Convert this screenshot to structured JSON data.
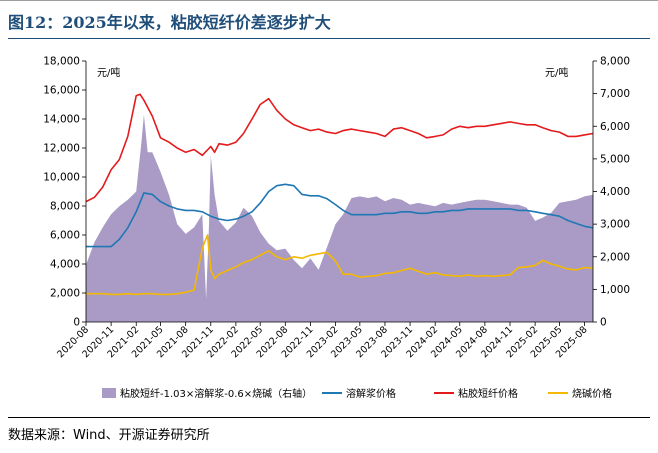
{
  "header": {
    "title": "图12：2025年以来，粘胶短纤价差逐步扩大"
  },
  "footer": {
    "source": "数据来源：Wind、开源证券研究所"
  },
  "chart_data": {
    "type": "line",
    "left_unit": "元/吨",
    "right_unit": "元/吨",
    "left_axis": {
      "min": 0,
      "max": 18000,
      "ticks": [
        "0",
        "2,000",
        "4,000",
        "6,000",
        "8,000",
        "10,000",
        "12,000",
        "14,000",
        "16,000",
        "18,000"
      ]
    },
    "right_axis": {
      "min": 0,
      "max": 8000,
      "ticks": [
        "0",
        "1,000",
        "2,000",
        "3,000",
        "4,000",
        "5,000",
        "6,000",
        "7,000",
        "8,000"
      ]
    },
    "x_range": [
      "2020-08",
      "2025-09"
    ],
    "x_tick_labels": [
      "2020-08",
      "2020-11",
      "2021-02",
      "2021-05",
      "2021-08",
      "2021-11",
      "2022-02",
      "2022-05",
      "2022-08",
      "2022-11",
      "2023-02",
      "2023-05",
      "2023-08",
      "2023-11",
      "2024-02",
      "2024-05",
      "2024-08",
      "2024-11",
      "2025-02",
      "2025-05",
      "2025-08"
    ],
    "grid": false,
    "legend_position": "bottom",
    "series": [
      {
        "name": "粘胶短纤-1.03×溶解浆-0.6×烧碱（右轴）",
        "kind": "area",
        "axis": "right",
        "color": "#a99bc6",
        "x": [
          "2020-08",
          "2020-09",
          "2020-10",
          "2020-11",
          "2020-12",
          "2021-01",
          "2021-02",
          "2021-02-20",
          "2021-03",
          "2021-03-15",
          "2021-04",
          "2021-05",
          "2021-06",
          "2021-07",
          "2021-08",
          "2021-09",
          "2021-10",
          "2021-10-15",
          "2021-10-25",
          "2021-11",
          "2021-11-15",
          "2021-12",
          "2022-01",
          "2022-02",
          "2022-03",
          "2022-04",
          "2022-05",
          "2022-06",
          "2022-07",
          "2022-08",
          "2022-09",
          "2022-10",
          "2022-11",
          "2022-12",
          "2023-01",
          "2023-02",
          "2023-03",
          "2023-04",
          "2023-05",
          "2023-06",
          "2023-07",
          "2023-08",
          "2023-09",
          "2023-10",
          "2023-11",
          "2023-12",
          "2024-01",
          "2024-02",
          "2024-03",
          "2024-04",
          "2024-05",
          "2024-06",
          "2024-07",
          "2024-08",
          "2024-09",
          "2024-10",
          "2024-11",
          "2024-12",
          "2025-01",
          "2025-02",
          "2025-03",
          "2025-04",
          "2025-05",
          "2025-06",
          "2025-07",
          "2025-08",
          "2025-09"
        ],
        "values": [
          1750,
          2450,
          2900,
          3300,
          3550,
          3750,
          4000,
          5500,
          6350,
          5200,
          5200,
          4600,
          3900,
          3000,
          2700,
          2900,
          3300,
          700,
          2900,
          5100,
          3900,
          3100,
          2800,
          3050,
          3500,
          3250,
          2750,
          2400,
          2200,
          2250,
          1900,
          1650,
          1950,
          1600,
          2300,
          3000,
          3300,
          3800,
          3850,
          3800,
          3850,
          3700,
          3800,
          3750,
          3600,
          3650,
          3600,
          3550,
          3650,
          3600,
          3650,
          3700,
          3750,
          3750,
          3700,
          3650,
          3600,
          3600,
          3500,
          3100,
          3200,
          3350,
          3650,
          3700,
          3750,
          3850,
          3900
        ]
      },
      {
        "name": "溶解浆价格",
        "kind": "line",
        "axis": "left",
        "color": "#1f77b4",
        "x": [
          "2020-08",
          "2020-11",
          "2020-12",
          "2021-01",
          "2021-02",
          "2021-03",
          "2021-04",
          "2021-05",
          "2021-06",
          "2021-07",
          "2021-08",
          "2021-09",
          "2021-10",
          "2021-11",
          "2021-12",
          "2022-01",
          "2022-02",
          "2022-03",
          "2022-04",
          "2022-05",
          "2022-06",
          "2022-07",
          "2022-08",
          "2022-09",
          "2022-10",
          "2022-11",
          "2022-12",
          "2023-01",
          "2023-02",
          "2023-03",
          "2023-04",
          "2023-05",
          "2023-06",
          "2023-07",
          "2023-08",
          "2023-09",
          "2023-10",
          "2023-11",
          "2023-12",
          "2024-01",
          "2024-02",
          "2024-03",
          "2024-04",
          "2024-05",
          "2024-06",
          "2024-07",
          "2024-08",
          "2024-09",
          "2024-10",
          "2024-11",
          "2024-12",
          "2025-01",
          "2025-02",
          "2025-03",
          "2025-04",
          "2025-05",
          "2025-06",
          "2025-07",
          "2025-08",
          "2025-09"
        ],
        "values": [
          5200,
          5200,
          5700,
          6500,
          7600,
          8900,
          8800,
          8300,
          8000,
          7800,
          7700,
          7700,
          7600,
          7300,
          7100,
          7000,
          7100,
          7300,
          7600,
          8200,
          9000,
          9400,
          9500,
          9400,
          8800,
          8700,
          8700,
          8500,
          8100,
          7700,
          7400,
          7400,
          7400,
          7400,
          7500,
          7500,
          7600,
          7600,
          7500,
          7500,
          7600,
          7600,
          7700,
          7700,
          7800,
          7800,
          7800,
          7800,
          7800,
          7800,
          7700,
          7700,
          7600,
          7500,
          7400,
          7300,
          7000,
          6800,
          6600,
          6500
        ]
      },
      {
        "name": "粘胶短纤价格",
        "kind": "line",
        "axis": "left",
        "color": "#e41a1c",
        "x": [
          "2020-08",
          "2020-09",
          "2020-10",
          "2020-11",
          "2020-12",
          "2021-01",
          "2021-02",
          "2021-02-15",
          "2021-03",
          "2021-04",
          "2021-05",
          "2021-06",
          "2021-07",
          "2021-08",
          "2021-09",
          "2021-10",
          "2021-11",
          "2021-11-15",
          "2021-12",
          "2022-01",
          "2022-02",
          "2022-03",
          "2022-04",
          "2022-05",
          "2022-06",
          "2022-07",
          "2022-08",
          "2022-09",
          "2022-10",
          "2022-11",
          "2022-12",
          "2023-01",
          "2023-02",
          "2023-03",
          "2023-04",
          "2023-05",
          "2023-06",
          "2023-07",
          "2023-08",
          "2023-09",
          "2023-10",
          "2023-11",
          "2023-12",
          "2024-01",
          "2024-02",
          "2024-03",
          "2024-04",
          "2024-05",
          "2024-06",
          "2024-07",
          "2024-08",
          "2024-09",
          "2024-10",
          "2024-11",
          "2024-12",
          "2025-01",
          "2025-02",
          "2025-03",
          "2025-04",
          "2025-05",
          "2025-06",
          "2025-07",
          "2025-08",
          "2025-09"
        ],
        "values": [
          8300,
          8600,
          9300,
          10500,
          11200,
          12800,
          15600,
          15700,
          15300,
          14200,
          12700,
          12400,
          12000,
          11700,
          11900,
          11500,
          12100,
          11700,
          12300,
          12200,
          12400,
          13000,
          14000,
          15000,
          15400,
          14600,
          14000,
          13600,
          13400,
          13200,
          13300,
          13100,
          13000,
          13200,
          13300,
          13200,
          13100,
          13000,
          12800,
          13300,
          13400,
          13200,
          13000,
          12700,
          12800,
          12900,
          13300,
          13500,
          13400,
          13500,
          13500,
          13600,
          13700,
          13800,
          13700,
          13600,
          13600,
          13400,
          13200,
          13100,
          12800,
          12800,
          12900,
          13000
        ]
      },
      {
        "name": "烧碱价格",
        "kind": "line",
        "axis": "left",
        "color": "#f5b800",
        "x": [
          "2020-08",
          "2020-09",
          "2020-10",
          "2020-11",
          "2020-12",
          "2021-01",
          "2021-02",
          "2021-03",
          "2021-04",
          "2021-05",
          "2021-06",
          "2021-07",
          "2021-08",
          "2021-09",
          "2021-10",
          "2021-10-20",
          "2021-11",
          "2021-11-15",
          "2021-12",
          "2022-01",
          "2022-02",
          "2022-03",
          "2022-04",
          "2022-05",
          "2022-06",
          "2022-07",
          "2022-08",
          "2022-09",
          "2022-10",
          "2022-11",
          "2022-12",
          "2023-01",
          "2023-02",
          "2023-03",
          "2023-04",
          "2023-05",
          "2023-06",
          "2023-07",
          "2023-08",
          "2023-09",
          "2023-10",
          "2023-11",
          "2023-12",
          "2024-01",
          "2024-02",
          "2024-03",
          "2024-04",
          "2024-05",
          "2024-06",
          "2024-07",
          "2024-08",
          "2024-09",
          "2024-10",
          "2024-11",
          "2024-12",
          "2025-01",
          "2025-02",
          "2025-03",
          "2025-04",
          "2025-05",
          "2025-06",
          "2025-07",
          "2025-08",
          "2025-09"
        ],
        "values": [
          1950,
          1950,
          1950,
          1900,
          1900,
          1950,
          1900,
          1950,
          1950,
          1900,
          1900,
          1950,
          2050,
          2200,
          5100,
          6000,
          3600,
          3000,
          3300,
          3550,
          3800,
          4100,
          4300,
          4600,
          4900,
          4500,
          4300,
          4500,
          4400,
          4600,
          4700,
          4800,
          4200,
          3300,
          3300,
          3100,
          3150,
          3200,
          3350,
          3400,
          3550,
          3700,
          3500,
          3300,
          3400,
          3250,
          3200,
          3150,
          3250,
          3150,
          3200,
          3150,
          3200,
          3250,
          3750,
          3800,
          3900,
          4250,
          4000,
          3850,
          3650,
          3600,
          3750,
          3700
        ]
      }
    ]
  }
}
